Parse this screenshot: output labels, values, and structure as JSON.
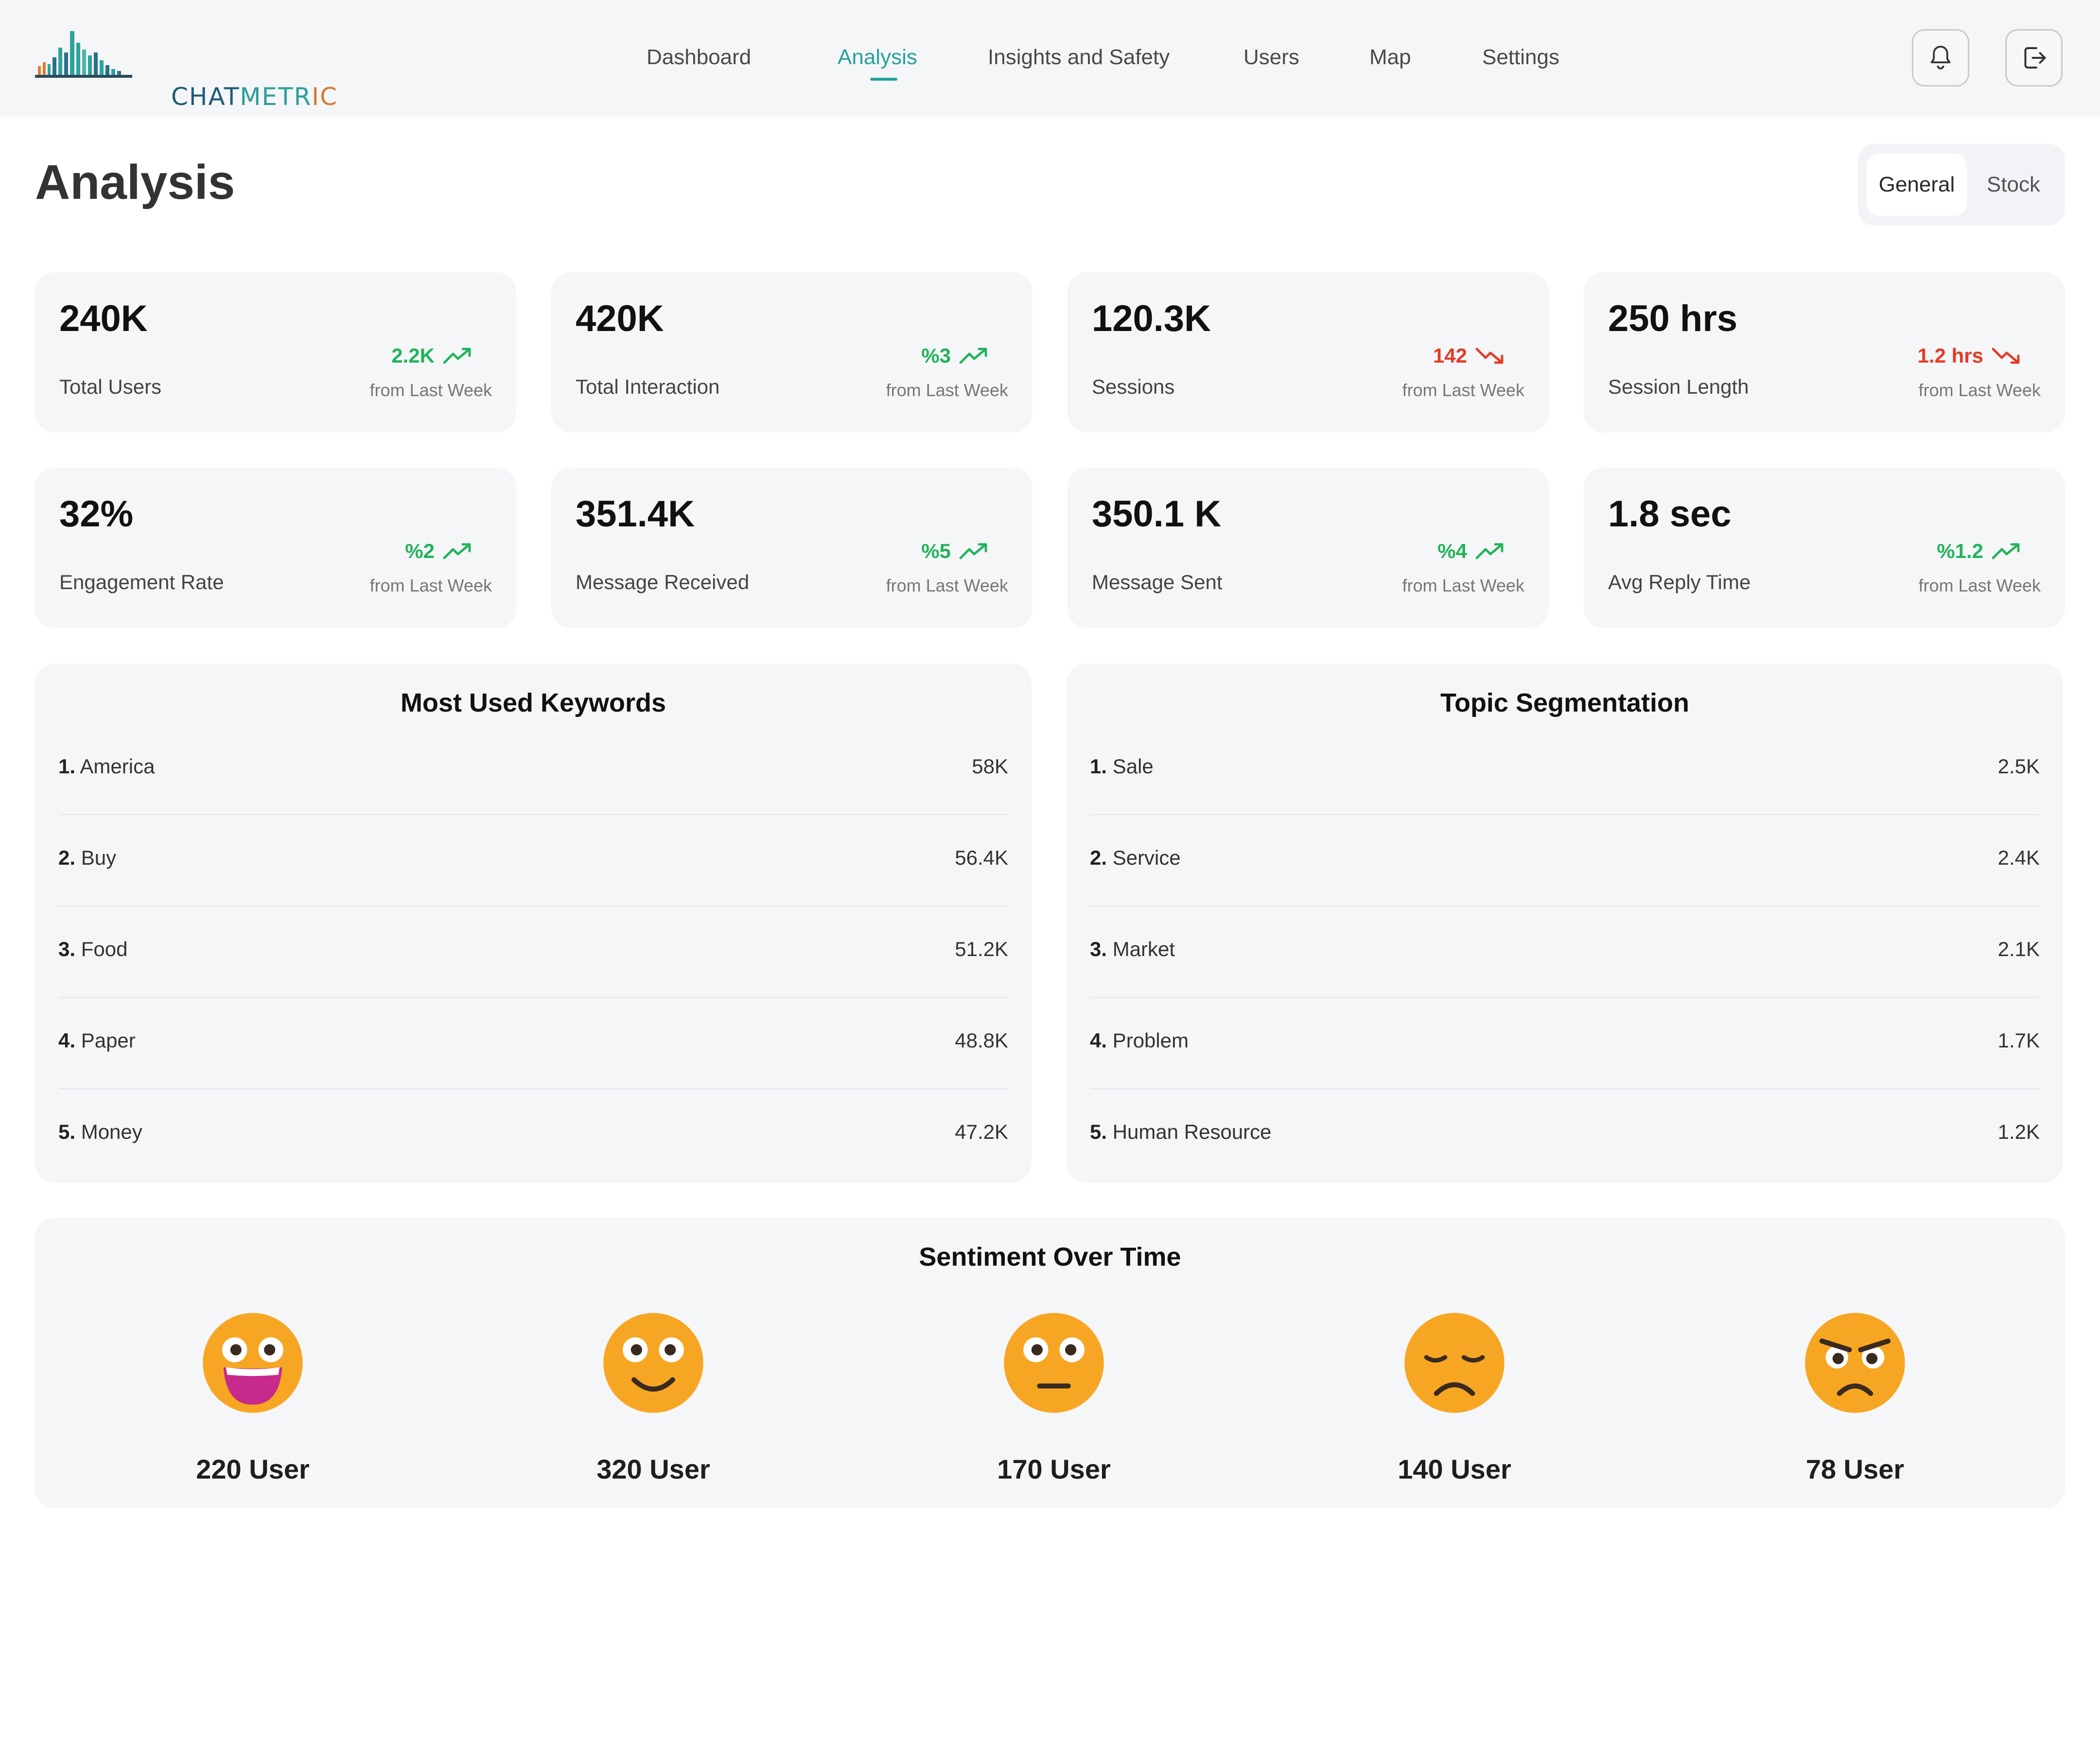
{
  "header": {
    "logo": {
      "part1": "CHAT",
      "part2": "METR",
      "part3": "IC"
    },
    "nav": [
      {
        "label": "Dashboard"
      },
      {
        "label": "Analysis"
      },
      {
        "label": "Insights and Safety"
      },
      {
        "label": "Users"
      },
      {
        "label": "Map"
      },
      {
        "label": "Settings"
      }
    ],
    "active_nav": "Analysis",
    "icons": [
      "bell-icon",
      "logout-icon"
    ]
  },
  "page": {
    "title": "Analysis",
    "toggle": {
      "selected": "General",
      "other": "Stock"
    }
  },
  "stats": [
    {
      "value": "240K",
      "label": "Total Users",
      "change": "2.2K",
      "direction": "up",
      "sub": "from Last Week"
    },
    {
      "value": "420K",
      "label": "Total Interaction",
      "change": "%3",
      "direction": "up",
      "sub": "from Last Week"
    },
    {
      "value": "120.3K",
      "label": "Sessions",
      "change": "142",
      "direction": "down",
      "sub": "from Last Week"
    },
    {
      "value": "250 hrs",
      "label": "Session Length",
      "change": "1.2 hrs",
      "direction": "down",
      "sub": "from Last Week"
    },
    {
      "value": "32%",
      "label": "Engagement Rate",
      "change": "%2",
      "direction": "up",
      "sub": "from Last Week"
    },
    {
      "value": "351.4K",
      "label": "Message Received",
      "change": "%5",
      "direction": "up",
      "sub": "from Last Week"
    },
    {
      "value": "350.1 K",
      "label": "Message Sent",
      "change": "%4",
      "direction": "up",
      "sub": "from Last Week"
    },
    {
      "value": "1.8 sec",
      "label": "Avg Reply Time",
      "change": "%1.2",
      "direction": "up",
      "sub": "from Last Week"
    }
  ],
  "keywords": {
    "title": "Most Used Keywords",
    "items": [
      {
        "rank": "1.",
        "label": "America",
        "value": "58K"
      },
      {
        "rank": "2.",
        "label": "Buy",
        "value": "56.4K"
      },
      {
        "rank": "3.",
        "label": "Food",
        "value": "51.2K"
      },
      {
        "rank": "4.",
        "label": "Paper",
        "value": "48.8K"
      },
      {
        "rank": "5.",
        "label": "Money",
        "value": "47.2K"
      }
    ]
  },
  "topics": {
    "title": "Topic Segmentation",
    "items": [
      {
        "rank": "1.",
        "label": "Sale",
        "value": "2.5K"
      },
      {
        "rank": "2.",
        "label": "Service",
        "value": "2.4K"
      },
      {
        "rank": "3.",
        "label": "Market",
        "value": "2.1K"
      },
      {
        "rank": "4.",
        "label": "Problem",
        "value": "1.7K"
      },
      {
        "rank": "5.",
        "label": "Human Resource",
        "value": "1.2K"
      }
    ]
  },
  "sentiment": {
    "title": "Sentiment Over Time",
    "items": [
      {
        "icon": "grinning-face-icon",
        "count": "220 User"
      },
      {
        "icon": "smiling-face-icon",
        "count": "320 User"
      },
      {
        "icon": "neutral-face-icon",
        "count": "170 User"
      },
      {
        "icon": "sad-face-icon",
        "count": "140 User"
      },
      {
        "icon": "angry-face-icon",
        "count": "78 User"
      }
    ]
  },
  "colors": {
    "accent": "#27a29b",
    "up": "#22b35b",
    "down": "#e53a25",
    "card_bg": "#f5f6f8",
    "emoji": "#f7a623"
  }
}
